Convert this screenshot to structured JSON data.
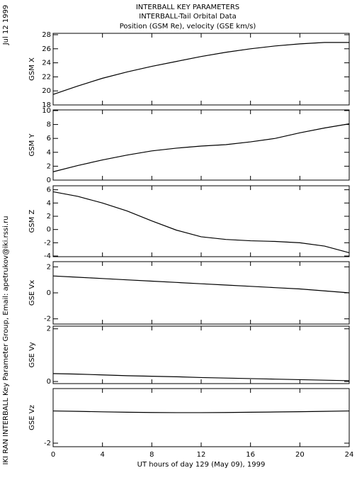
{
  "header": {
    "lines": [
      "INTERBALL KEY PARAMETERS",
      "INTERBALL-Tail Orbital Data",
      "Position (GSM Re), velocity (GSE km/s)"
    ]
  },
  "side_notes": [
    "Jul 12 1999",
    "IKI RAN INTERBALL Key Parameter Group, Email: apetrukov@iki.rssi.ru"
  ],
  "chart_data": [
    {
      "type": "line",
      "y_label": "GSM X",
      "color": "#000000",
      "x": [
        0,
        2,
        4,
        6,
        8,
        10,
        12,
        14,
        16,
        18,
        20,
        22,
        24
      ],
      "values": [
        19.5,
        20.7,
        21.8,
        22.7,
        23.5,
        24.2,
        24.9,
        25.5,
        26.0,
        26.4,
        26.7,
        26.9,
        26.9
      ],
      "ylim": [
        18,
        28.2
      ],
      "yticks": [
        18,
        20,
        22,
        24,
        26,
        28
      ]
    },
    {
      "type": "line",
      "y_label": "GSM Y",
      "color": "#000000",
      "x": [
        0,
        2,
        4,
        6,
        8,
        10,
        12,
        14,
        16,
        18,
        20,
        22,
        24
      ],
      "values": [
        1.2,
        2.1,
        2.9,
        3.6,
        4.2,
        4.6,
        4.9,
        5.1,
        5.5,
        6.0,
        6.8,
        7.5,
        8.1
      ],
      "ylim": [
        0,
        10.1
      ],
      "yticks": [
        0,
        2,
        4,
        6,
        8,
        10
      ]
    },
    {
      "type": "line",
      "y_label": "GSM Z",
      "color": "#000000",
      "x": [
        0,
        2,
        4,
        6,
        8,
        10,
        12,
        14,
        16,
        18,
        20,
        22,
        24
      ],
      "values": [
        5.7,
        5.0,
        4.0,
        2.8,
        1.3,
        -0.1,
        -1.1,
        -1.5,
        -1.7,
        -1.8,
        -2.0,
        -2.5,
        -3.5
      ],
      "ylim": [
        -4.1,
        6.6
      ],
      "yticks": [
        -4,
        -2,
        0,
        2,
        4,
        6
      ]
    },
    {
      "type": "line",
      "y_label": "GSE Vx",
      "color": "#000000",
      "x": [
        0,
        2,
        4,
        6,
        8,
        10,
        12,
        14,
        16,
        18,
        20,
        22,
        24
      ],
      "values": [
        1.3,
        1.2,
        1.1,
        1.0,
        0.9,
        0.8,
        0.7,
        0.6,
        0.5,
        0.4,
        0.3,
        0.15,
        0.0
      ],
      "ylim": [
        -2.4,
        2.4
      ],
      "yticks": [
        -2,
        0,
        2
      ]
    },
    {
      "type": "line",
      "y_label": "GSE Vy",
      "color": "#000000",
      "x": [
        0,
        2,
        4,
        6,
        8,
        10,
        12,
        14,
        16,
        18,
        20,
        22,
        24
      ],
      "values": [
        0.3,
        0.28,
        0.25,
        0.22,
        0.2,
        0.18,
        0.15,
        0.13,
        0.11,
        0.09,
        0.07,
        0.05,
        0.03
      ],
      "ylim": [
        -0.08,
        2.1
      ],
      "yticks": [
        0,
        2
      ]
    },
    {
      "type": "line",
      "y_label": "GSE Vz",
      "color": "#000000",
      "x": [
        0,
        2,
        4,
        6,
        8,
        10,
        12,
        14,
        16,
        18,
        20,
        22,
        24
      ],
      "values": [
        0.45,
        0.42,
        0.38,
        0.35,
        0.33,
        0.32,
        0.32,
        0.33,
        0.35,
        0.37,
        0.39,
        0.42,
        0.45
      ],
      "ylim": [
        -2.27,
        2.15
      ],
      "yticks": [
        -2
      ],
      "x_label": "UT hours of day 129 (May 09), 1999",
      "xlim": [
        0,
        24
      ],
      "xticks": [
        0,
        4,
        8,
        12,
        16,
        20,
        24
      ]
    }
  ]
}
